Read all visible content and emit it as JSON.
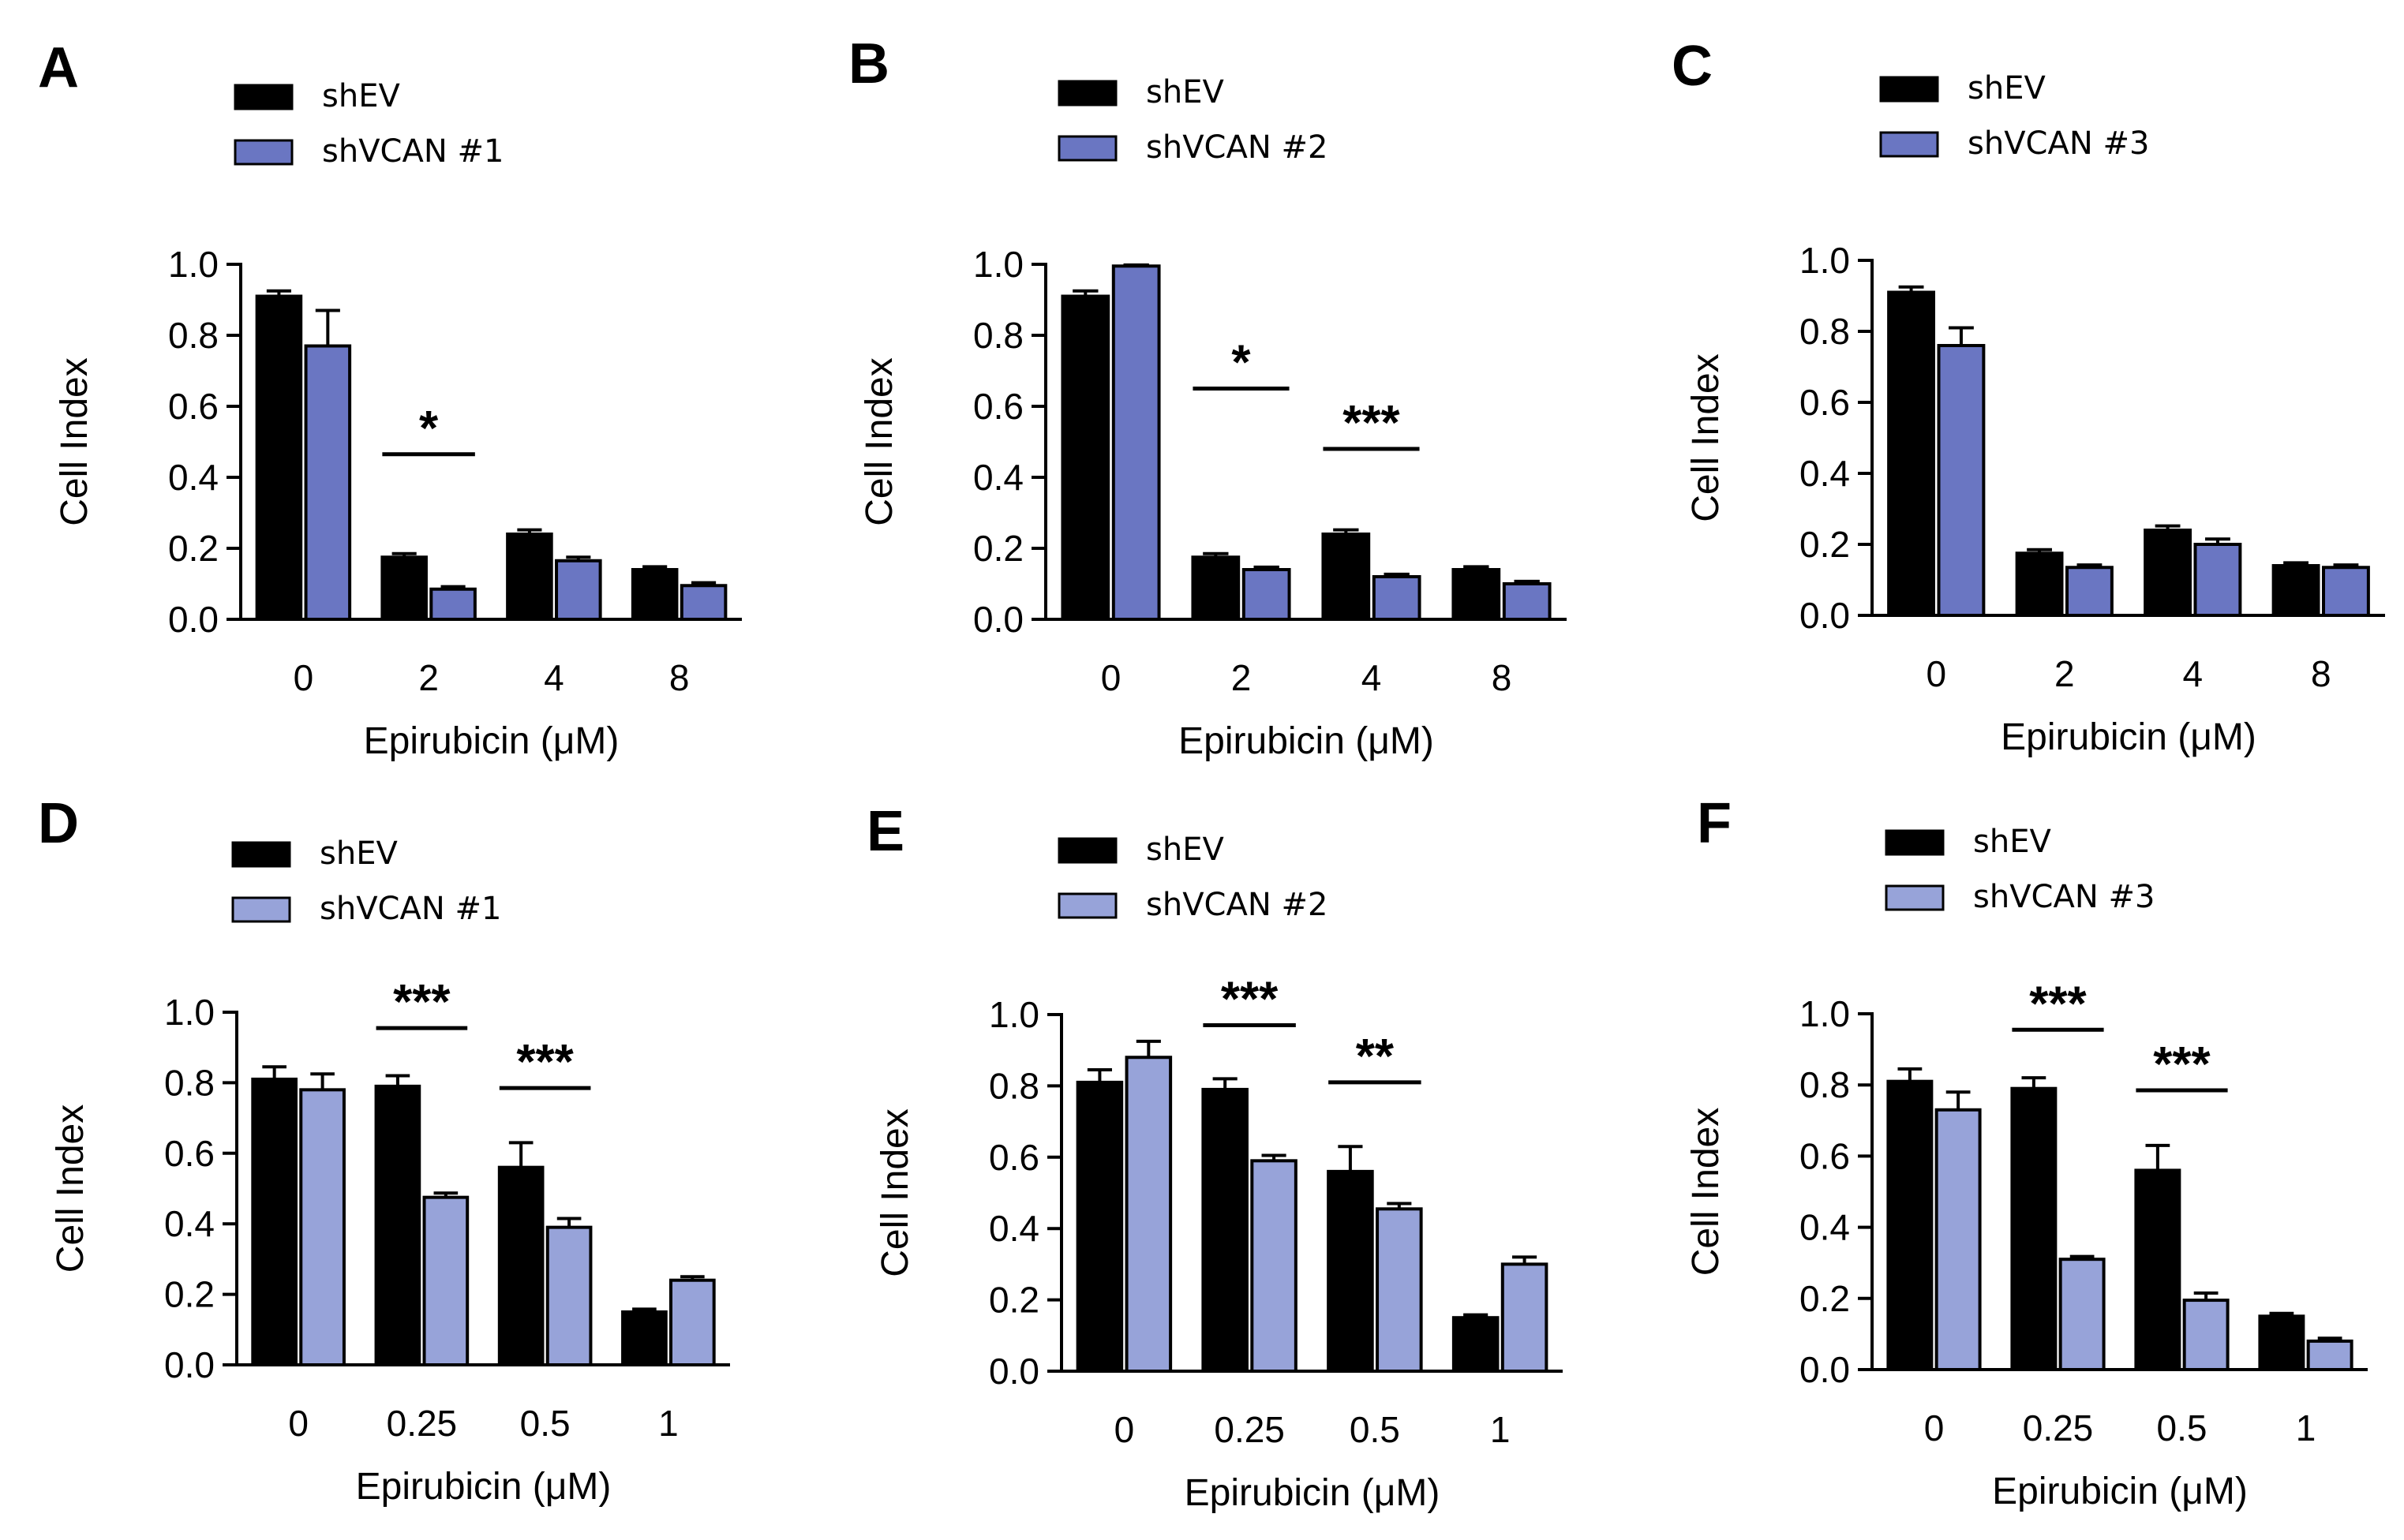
{
  "figure": {
    "colors": {
      "control": "#000000",
      "dark_blue": "#6a76c2",
      "light_blue": "#97a3d9",
      "axis": "#000000"
    }
  },
  "chart_data": [
    {
      "panel": "A",
      "type": "bar",
      "categories": [
        "0",
        "2",
        "4",
        "8"
      ],
      "series": [
        {
          "name": "shEV",
          "values": [
            0.91,
            0.175,
            0.24,
            0.14
          ],
          "errors": [
            0.015,
            0.01,
            0.012,
            0.008
          ],
          "color": "#000000"
        },
        {
          "name": "shVCAN #1",
          "values": [
            0.77,
            0.085,
            0.165,
            0.095
          ],
          "errors": [
            0.1,
            0.007,
            0.01,
            0.008
          ],
          "color": "#6a76c2"
        }
      ],
      "ylabel": "Cell Index",
      "xlabel": "Epirubicin (μM)",
      "yticks": [
        "0.0",
        "0.2",
        "0.4",
        "0.6",
        "0.8",
        "1.0"
      ],
      "ylim": [
        0,
        1.0
      ],
      "significance": [
        {
          "category_index": 1,
          "label": "*",
          "y": 0.465
        }
      ]
    },
    {
      "panel": "B",
      "type": "bar",
      "categories": [
        "0",
        "2",
        "4",
        "8"
      ],
      "series": [
        {
          "name": "shEV",
          "values": [
            0.91,
            0.175,
            0.24,
            0.14
          ],
          "errors": [
            0.015,
            0.01,
            0.012,
            0.008
          ],
          "color": "#000000"
        },
        {
          "name": "shVCAN #2",
          "values": [
            0.995,
            0.14,
            0.12,
            0.1
          ],
          "errors": [
            0.003,
            0.007,
            0.007,
            0.007
          ],
          "color": "#6a76c2"
        }
      ],
      "ylabel": "Cell Index",
      "xlabel": "Epirubicin (μM)",
      "yticks": [
        "0.0",
        "0.2",
        "0.4",
        "0.6",
        "0.8",
        "1.0"
      ],
      "ylim": [
        0,
        1.0
      ],
      "significance": [
        {
          "category_index": 1,
          "label": "*",
          "y": 0.65
        },
        {
          "category_index": 2,
          "label": "***",
          "y": 0.48
        }
      ]
    },
    {
      "panel": "C",
      "type": "bar",
      "categories": [
        "0",
        "2",
        "4",
        "8"
      ],
      "series": [
        {
          "name": "shEV",
          "values": [
            0.91,
            0.175,
            0.24,
            0.14
          ],
          "errors": [
            0.015,
            0.01,
            0.012,
            0.008
          ],
          "color": "#000000"
        },
        {
          "name": "shVCAN #3",
          "values": [
            0.76,
            0.135,
            0.2,
            0.135
          ],
          "errors": [
            0.05,
            0.007,
            0.015,
            0.007
          ],
          "color": "#6a76c2"
        }
      ],
      "ylabel": "Cell Index",
      "xlabel": "Epirubicin (μM)",
      "yticks": [
        "0.0",
        "0.2",
        "0.4",
        "0.6",
        "0.8",
        "1.0"
      ],
      "ylim": [
        0,
        1.0
      ],
      "significance": []
    },
    {
      "panel": "D",
      "type": "bar",
      "categories": [
        "0",
        "0.25",
        "0.5",
        "1"
      ],
      "series": [
        {
          "name": "shEV",
          "values": [
            0.81,
            0.79,
            0.56,
            0.15
          ],
          "errors": [
            0.035,
            0.03,
            0.07,
            0.008
          ],
          "color": "#000000"
        },
        {
          "name": "shVCAN #1",
          "values": [
            0.78,
            0.475,
            0.39,
            0.24
          ],
          "errors": [
            0.045,
            0.012,
            0.025,
            0.01
          ],
          "color": "#97a3d9"
        }
      ],
      "ylabel": "Cell Index",
      "xlabel": "Epirubicin (μM)",
      "yticks": [
        "0.0",
        "0.2",
        "0.4",
        "0.6",
        "0.8",
        "1.0"
      ],
      "ylim": [
        0,
        1.0
      ],
      "significance": [
        {
          "category_index": 1,
          "label": "***",
          "y": 0.955
        },
        {
          "category_index": 2,
          "label": "***",
          "y": 0.785
        }
      ]
    },
    {
      "panel": "E",
      "type": "bar",
      "categories": [
        "0",
        "0.25",
        "0.5",
        "1"
      ],
      "series": [
        {
          "name": "shEV",
          "values": [
            0.81,
            0.79,
            0.56,
            0.15
          ],
          "errors": [
            0.035,
            0.03,
            0.07,
            0.008
          ],
          "color": "#000000"
        },
        {
          "name": "shVCAN #2",
          "values": [
            0.88,
            0.59,
            0.455,
            0.3
          ],
          "errors": [
            0.045,
            0.015,
            0.015,
            0.02
          ],
          "color": "#97a3d9"
        }
      ],
      "ylabel": "Cell Index",
      "xlabel": "Epirubicin (μM)",
      "yticks": [
        "0.0",
        "0.2",
        "0.4",
        "0.6",
        "0.8",
        "1.0"
      ],
      "ylim": [
        0,
        1.0
      ],
      "significance": [
        {
          "category_index": 1,
          "label": "***",
          "y": 0.97
        },
        {
          "category_index": 2,
          "label": "**",
          "y": 0.81
        }
      ]
    },
    {
      "panel": "F",
      "type": "bar",
      "categories": [
        "0",
        "0.25",
        "0.5",
        "1"
      ],
      "series": [
        {
          "name": "shEV",
          "values": [
            0.81,
            0.79,
            0.56,
            0.15
          ],
          "errors": [
            0.035,
            0.03,
            0.07,
            0.008
          ],
          "color": "#000000"
        },
        {
          "name": "shVCAN #3",
          "values": [
            0.73,
            0.31,
            0.195,
            0.08
          ],
          "errors": [
            0.05,
            0.008,
            0.02,
            0.008
          ],
          "color": "#97a3d9"
        }
      ],
      "ylabel": "Cell Index",
      "xlabel": "Epirubicin (μM)",
      "yticks": [
        "0.0",
        "0.2",
        "0.4",
        "0.6",
        "0.8",
        "1.0"
      ],
      "ylim": [
        0,
        1.0
      ],
      "significance": [
        {
          "category_index": 1,
          "label": "***",
          "y": 0.955
        },
        {
          "category_index": 2,
          "label": "***",
          "y": 0.785
        }
      ]
    }
  ]
}
